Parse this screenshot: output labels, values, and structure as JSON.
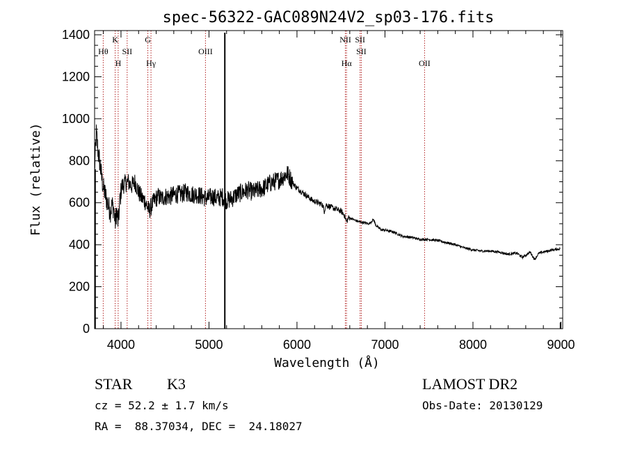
{
  "chart_data": {
    "type": "line",
    "title": "spec-56322-GAC089N24V2_sp03-176.fits",
    "xlabel": "Wavelength (Å)",
    "ylabel": "Flux (relative)",
    "xlim": [
      3700,
      9020
    ],
    "ylim": [
      0,
      1420
    ],
    "xticks": [
      4000,
      5000,
      6000,
      7000,
      8000,
      9000
    ],
    "yticks": [
      0,
      200,
      400,
      600,
      800,
      1000,
      1200,
      1400
    ],
    "colors": {
      "spectrum": "#000000",
      "line_markers": "#b22222"
    },
    "spectrum_anchors": [
      [
        3700,
        760
      ],
      [
        3720,
        930
      ],
      [
        3740,
        840
      ],
      [
        3760,
        790
      ],
      [
        3780,
        720
      ],
      [
        3800,
        670
      ],
      [
        3820,
        640
      ],
      [
        3840,
        610
      ],
      [
        3860,
        580
      ],
      [
        3880,
        560
      ],
      [
        3900,
        590
      ],
      [
        3920,
        570
      ],
      [
        3933,
        500
      ],
      [
        3950,
        560
      ],
      [
        3968,
        500
      ],
      [
        3990,
        620
      ],
      [
        4010,
        680
      ],
      [
        4040,
        690
      ],
      [
        4080,
        700
      ],
      [
        4120,
        680
      ],
      [
        4160,
        700
      ],
      [
        4200,
        650
      ],
      [
        4240,
        620
      ],
      [
        4270,
        610
      ],
      [
        4300,
        580
      ],
      [
        4320,
        560
      ],
      [
        4340,
        580
      ],
      [
        4380,
        610
      ],
      [
        4420,
        630
      ],
      [
        4460,
        620
      ],
      [
        4500,
        630
      ],
      [
        4560,
        630
      ],
      [
        4620,
        640
      ],
      [
        4680,
        640
      ],
      [
        4740,
        650
      ],
      [
        4800,
        640
      ],
      [
        4860,
        640
      ],
      [
        4920,
        630
      ],
      [
        4980,
        620
      ],
      [
        5040,
        630
      ],
      [
        5100,
        620
      ],
      [
        5150,
        630
      ],
      [
        5200,
        610
      ],
      [
        5260,
        620
      ],
      [
        5320,
        640
      ],
      [
        5380,
        650
      ],
      [
        5440,
        660
      ],
      [
        5500,
        650
      ],
      [
        5560,
        660
      ],
      [
        5620,
        670
      ],
      [
        5680,
        690
      ],
      [
        5740,
        700
      ],
      [
        5800,
        710
      ],
      [
        5860,
        730
      ],
      [
        5890,
        740
      ],
      [
        5920,
        720
      ],
      [
        5960,
        690
      ],
      [
        6000,
        670
      ],
      [
        6060,
        650
      ],
      [
        6120,
        630
      ],
      [
        6180,
        610
      ],
      [
        6240,
        600
      ],
      [
        6290,
        590
      ],
      [
        6310,
        560
      ],
      [
        6330,
        590
      ],
      [
        6380,
        580
      ],
      [
        6440,
        570
      ],
      [
        6500,
        560
      ],
      [
        6540,
        540
      ],
      [
        6563,
        510
      ],
      [
        6590,
        530
      ],
      [
        6640,
        520
      ],
      [
        6700,
        510
      ],
      [
        6760,
        505
      ],
      [
        6820,
        500
      ],
      [
        6870,
        520
      ],
      [
        6900,
        490
      ],
      [
        6960,
        470
      ],
      [
        7000,
        470
      ],
      [
        7100,
        460
      ],
      [
        7200,
        440
      ],
      [
        7300,
        435
      ],
      [
        7400,
        425
      ],
      [
        7500,
        425
      ],
      [
        7600,
        420
      ],
      [
        7700,
        410
      ],
      [
        7800,
        400
      ],
      [
        7900,
        385
      ],
      [
        8000,
        375
      ],
      [
        8100,
        370
      ],
      [
        8200,
        370
      ],
      [
        8300,
        365
      ],
      [
        8400,
        355
      ],
      [
        8500,
        360
      ],
      [
        8560,
        340
      ],
      [
        8600,
        350
      ],
      [
        8650,
        365
      ],
      [
        8700,
        330
      ],
      [
        8750,
        360
      ],
      [
        8800,
        365
      ],
      [
        8900,
        375
      ],
      [
        8990,
        380
      ]
    ],
    "spikes": [
      {
        "x": 5180,
        "y": 1410
      },
      {
        "x": 8995,
        "y": 30
      }
    ],
    "emission_lines": [
      {
        "name": "Hθ",
        "x": 3798,
        "row": 2
      },
      {
        "name": "K",
        "x": 3934,
        "row": 1
      },
      {
        "name": "H",
        "x": 3968,
        "row": 3
      },
      {
        "name": "SII",
        "x": 4070,
        "row": 2
      },
      {
        "name": "G",
        "x": 4305,
        "row": 1
      },
      {
        "name": "Hγ",
        "x": 4341,
        "row": 3
      },
      {
        "name": "OIII",
        "x": 4960,
        "row": 2
      },
      {
        "name": "NII",
        "x": 6550,
        "row": 1
      },
      {
        "name": "Hα",
        "x": 6563,
        "row": 3
      },
      {
        "name": "SII",
        "x": 6717,
        "row": 1
      },
      {
        "name": "SII",
        "x": 6731,
        "row": 2
      },
      {
        "name": "OII",
        "x": 7450,
        "row": 3
      }
    ]
  },
  "info": {
    "object_class": "STAR",
    "subclass": "K3",
    "survey": "LAMOST DR2",
    "redshift_line": "cz = 52.2 ± 1.7 km/s",
    "obs_date_line": "Obs-Date: 20130129",
    "coords_line": "RA =  88.37034, DEC =  24.18027"
  }
}
